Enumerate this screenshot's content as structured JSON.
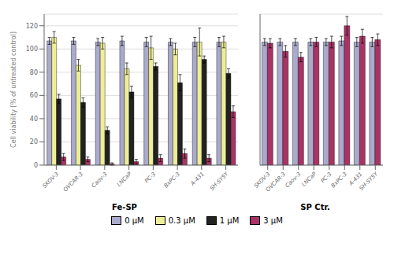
{
  "chart_data": [
    {
      "type": "bar",
      "xlabel": "Fe-SP",
      "ylabel": "Cell viability [% of untreated control]",
      "categories": [
        "SKOV-3",
        "OVCAR-3",
        "Caov-3",
        "LNCaP",
        "PC-3",
        "BxPC-3",
        "A-431",
        "SH-SY5Y"
      ],
      "series": [
        {
          "name": "0 μM",
          "color": "#AAAACC",
          "values": [
            107,
            107,
            106,
            107,
            106,
            106,
            106,
            106
          ],
          "errors": [
            3,
            3,
            3,
            4,
            4,
            3,
            4,
            4
          ]
        },
        {
          "name": "0.3 μM",
          "color": "#EEEE99",
          "values": [
            110,
            86,
            105,
            83,
            101,
            100,
            106,
            106
          ],
          "errors": [
            5,
            5,
            5,
            5,
            10,
            5,
            12,
            5
          ]
        },
        {
          "name": "1 μM",
          "color": "#222222",
          "values": [
            57,
            54,
            30,
            63,
            85,
            71,
            91,
            79
          ],
          "errors": [
            4,
            4,
            3,
            5,
            3,
            7,
            3,
            4
          ]
        },
        {
          "name": "3 μM",
          "color": "#AA3366",
          "values": [
            7,
            5,
            1,
            3,
            6,
            10,
            6,
            46
          ],
          "errors": [
            3,
            2,
            1,
            2,
            3,
            4,
            3,
            5
          ]
        }
      ],
      "ylim": [
        0,
        130
      ],
      "yticks": [
        0,
        20,
        40,
        60,
        80,
        100,
        120
      ],
      "grid": true,
      "legend": "bottom"
    },
    {
      "type": "bar",
      "xlabel": "SP Ctr.",
      "categories": [
        "SKOV-3",
        "OVCAR-3",
        "Caov-3",
        "LNCaP",
        "PC-3",
        "BxPC-3",
        "A-431",
        "SH-SY5Y"
      ],
      "series": [
        {
          "name": "0 μM",
          "color": "#AAAACC",
          "values": [
            106,
            106,
            106,
            106,
            106,
            107,
            106,
            106
          ],
          "errors": [
            3,
            3,
            3,
            3,
            3,
            4,
            4,
            4
          ]
        },
        {
          "name": "3 μM",
          "color": "#AA3366",
          "values": [
            105,
            98,
            93,
            106,
            106,
            120,
            111,
            108
          ],
          "errors": [
            4,
            5,
            4,
            4,
            5,
            8,
            6,
            5
          ]
        }
      ],
      "ylim": [
        0,
        130
      ],
      "yticks": [
        0,
        20,
        40,
        60,
        80,
        100,
        120
      ],
      "grid": true,
      "tick_labels": "x"
    }
  ]
}
